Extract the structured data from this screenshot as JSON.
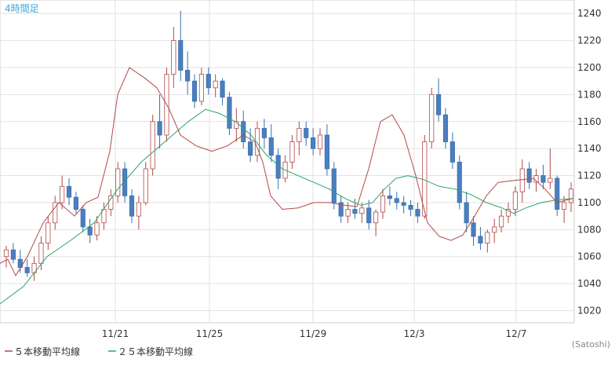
{
  "chart_data": {
    "type": "candlestick",
    "period_label": "4時間足",
    "credit": "(Satoshi)",
    "y_ticks": [
      1020,
      1040,
      1060,
      1080,
      1100,
      1120,
      1140,
      1160,
      1180,
      1200,
      1220,
      1240
    ],
    "ylim": [
      1011,
      1250
    ],
    "x_labels": [
      "11/21",
      "11/25",
      "11/29",
      "12/3",
      "12/7"
    ],
    "grid": true,
    "colors": {
      "up_body": "#ffffff",
      "up_border": "#b04a4a",
      "down_body": "#4a7fc0",
      "down_border": "#3a6faa",
      "ma5": "#b04a4a",
      "ma25": "#2ea36a"
    },
    "legend": [
      {
        "label": "５本移動平均線",
        "color": "#b04a4a"
      },
      {
        "label": "２５本移動平均線",
        "color": "#2ea36a"
      }
    ],
    "candles": [
      [
        1060,
        1068,
        1052,
        1065
      ],
      [
        1065,
        1070,
        1055,
        1058
      ],
      [
        1058,
        1065,
        1048,
        1052
      ],
      [
        1052,
        1058,
        1045,
        1048
      ],
      [
        1048,
        1060,
        1042,
        1055
      ],
      [
        1055,
        1075,
        1050,
        1070
      ],
      [
        1070,
        1090,
        1065,
        1085
      ],
      [
        1085,
        1105,
        1080,
        1100
      ],
      [
        1100,
        1120,
        1095,
        1112
      ],
      [
        1112,
        1118,
        1098,
        1104
      ],
      [
        1104,
        1108,
        1092,
        1095
      ],
      [
        1095,
        1098,
        1078,
        1082
      ],
      [
        1082,
        1088,
        1070,
        1076
      ],
      [
        1076,
        1090,
        1072,
        1085
      ],
      [
        1085,
        1100,
        1080,
        1095
      ],
      [
        1095,
        1110,
        1090,
        1105
      ],
      [
        1105,
        1130,
        1100,
        1125
      ],
      [
        1125,
        1130,
        1100,
        1105
      ],
      [
        1105,
        1110,
        1085,
        1090
      ],
      [
        1090,
        1105,
        1080,
        1100
      ],
      [
        1100,
        1130,
        1098,
        1125
      ],
      [
        1125,
        1165,
        1120,
        1160
      ],
      [
        1160,
        1180,
        1140,
        1150
      ],
      [
        1150,
        1200,
        1145,
        1195
      ],
      [
        1195,
        1230,
        1185,
        1220
      ],
      [
        1220,
        1242,
        1190,
        1198
      ],
      [
        1198,
        1212,
        1180,
        1190
      ],
      [
        1190,
        1195,
        1170,
        1175
      ],
      [
        1175,
        1200,
        1172,
        1195
      ],
      [
        1195,
        1200,
        1180,
        1185
      ],
      [
        1185,
        1195,
        1178,
        1190
      ],
      [
        1190,
        1192,
        1172,
        1178
      ],
      [
        1178,
        1182,
        1150,
        1155
      ],
      [
        1155,
        1170,
        1145,
        1160
      ],
      [
        1160,
        1168,
        1140,
        1145
      ],
      [
        1145,
        1155,
        1130,
        1135
      ],
      [
        1135,
        1160,
        1130,
        1155
      ],
      [
        1155,
        1162,
        1140,
        1148
      ],
      [
        1148,
        1158,
        1130,
        1135
      ],
      [
        1135,
        1140,
        1110,
        1118
      ],
      [
        1118,
        1135,
        1115,
        1130
      ],
      [
        1130,
        1150,
        1125,
        1145
      ],
      [
        1145,
        1160,
        1135,
        1155
      ],
      [
        1155,
        1160,
        1142,
        1148
      ],
      [
        1148,
        1155,
        1135,
        1140
      ],
      [
        1140,
        1155,
        1135,
        1150
      ],
      [
        1150,
        1158,
        1120,
        1125
      ],
      [
        1125,
        1130,
        1095,
        1100
      ],
      [
        1100,
        1105,
        1085,
        1090
      ],
      [
        1090,
        1100,
        1085,
        1095
      ],
      [
        1095,
        1103,
        1088,
        1092
      ],
      [
        1092,
        1100,
        1085,
        1096
      ],
      [
        1096,
        1102,
        1080,
        1085
      ],
      [
        1085,
        1095,
        1075,
        1093
      ],
      [
        1093,
        1110,
        1088,
        1105
      ],
      [
        1105,
        1112,
        1098,
        1103
      ],
      [
        1103,
        1108,
        1095,
        1100
      ],
      [
        1100,
        1105,
        1092,
        1098
      ],
      [
        1098,
        1102,
        1090,
        1095
      ],
      [
        1095,
        1100,
        1085,
        1090
      ],
      [
        1090,
        1150,
        1088,
        1145
      ],
      [
        1145,
        1185,
        1140,
        1180
      ],
      [
        1180,
        1192,
        1160,
        1165
      ],
      [
        1165,
        1170,
        1140,
        1145
      ],
      [
        1145,
        1152,
        1125,
        1130
      ],
      [
        1130,
        1135,
        1095,
        1100
      ],
      [
        1100,
        1108,
        1078,
        1085
      ],
      [
        1085,
        1090,
        1068,
        1075
      ],
      [
        1075,
        1082,
        1065,
        1070
      ],
      [
        1070,
        1080,
        1063,
        1078
      ],
      [
        1078,
        1088,
        1070,
        1082
      ],
      [
        1082,
        1095,
        1078,
        1090
      ],
      [
        1090,
        1100,
        1085,
        1095
      ],
      [
        1095,
        1112,
        1090,
        1108
      ],
      [
        1108,
        1132,
        1100,
        1125
      ],
      [
        1125,
        1130,
        1110,
        1115
      ],
      [
        1115,
        1125,
        1108,
        1120
      ],
      [
        1120,
        1128,
        1110,
        1115
      ],
      [
        1115,
        1140,
        1110,
        1118
      ],
      [
        1118,
        1120,
        1090,
        1095
      ],
      [
        1095,
        1105,
        1085,
        1100
      ],
      [
        1100,
        1115,
        1093,
        1110
      ]
    ],
    "ma5": [
      [
        0,
        1055
      ],
      [
        10,
        1058
      ],
      [
        20,
        1046
      ],
      [
        35,
        1060
      ],
      [
        55,
        1085
      ],
      [
        75,
        1100
      ],
      [
        95,
        1090
      ],
      [
        110,
        1100
      ],
      [
        125,
        1104
      ],
      [
        140,
        1138
      ],
      [
        150,
        1180
      ],
      [
        165,
        1200
      ],
      [
        185,
        1192
      ],
      [
        200,
        1185
      ],
      [
        215,
        1170
      ],
      [
        230,
        1150
      ],
      [
        250,
        1142
      ],
      [
        270,
        1138
      ],
      [
        290,
        1142
      ],
      [
        310,
        1150
      ],
      [
        325,
        1145
      ],
      [
        335,
        1130
      ],
      [
        345,
        1105
      ],
      [
        360,
        1095
      ],
      [
        380,
        1096
      ],
      [
        400,
        1100
      ],
      [
        420,
        1100
      ],
      [
        440,
        1098
      ],
      [
        455,
        1097
      ],
      [
        470,
        1125
      ],
      [
        485,
        1160
      ],
      [
        500,
        1165
      ],
      [
        515,
        1150
      ],
      [
        530,
        1120
      ],
      [
        545,
        1085
      ],
      [
        560,
        1075
      ],
      [
        575,
        1072
      ],
      [
        590,
        1076
      ],
      [
        605,
        1090
      ],
      [
        620,
        1105
      ],
      [
        635,
        1115
      ],
      [
        650,
        1116
      ],
      [
        665,
        1117
      ],
      [
        680,
        1118
      ],
      [
        695,
        1110
      ],
      [
        710,
        1100
      ],
      [
        730,
        1103
      ]
    ],
    "ma25": [
      [
        0,
        1025
      ],
      [
        30,
        1038
      ],
      [
        60,
        1060
      ],
      [
        90,
        1072
      ],
      [
        120,
        1085
      ],
      [
        150,
        1110
      ],
      [
        180,
        1130
      ],
      [
        210,
        1145
      ],
      [
        240,
        1160
      ],
      [
        262,
        1169
      ],
      [
        280,
        1166
      ],
      [
        300,
        1160
      ],
      [
        320,
        1150
      ],
      [
        340,
        1135
      ],
      [
        360,
        1125
      ],
      [
        380,
        1120
      ],
      [
        400,
        1115
      ],
      [
        420,
        1110
      ],
      [
        440,
        1103
      ],
      [
        460,
        1098
      ],
      [
        475,
        1100
      ],
      [
        490,
        1110
      ],
      [
        505,
        1118
      ],
      [
        520,
        1120
      ],
      [
        540,
        1117
      ],
      [
        560,
        1112
      ],
      [
        580,
        1110
      ],
      [
        600,
        1106
      ],
      [
        620,
        1100
      ],
      [
        640,
        1096
      ],
      [
        655,
        1092
      ],
      [
        670,
        1096
      ],
      [
        690,
        1100
      ],
      [
        710,
        1102
      ],
      [
        730,
        1103
      ]
    ]
  }
}
